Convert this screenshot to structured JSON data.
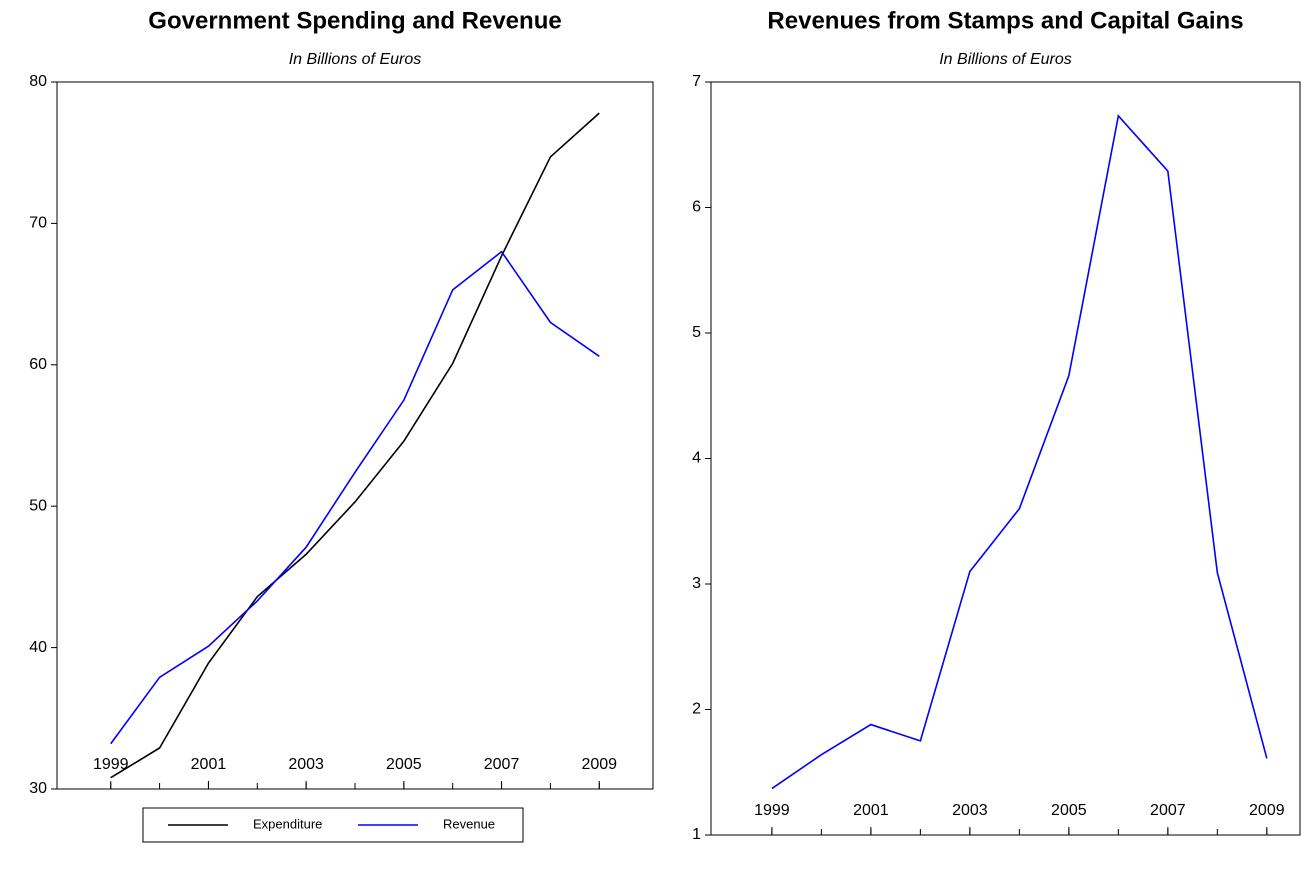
{
  "chart_data": [
    {
      "type": "line",
      "title": "Government Spending and Revenue",
      "subtitle": "In Billions of Euros",
      "x": [
        1999,
        2000,
        2001,
        2002,
        2003,
        2004,
        2005,
        2006,
        2007,
        2008,
        2009
      ],
      "series": [
        {
          "name": "Expenditure",
          "color": "#000000",
          "values": [
            30.8,
            32.9,
            38.9,
            43.6,
            46.6,
            50.3,
            54.6,
            60.1,
            67.7,
            74.7,
            77.8
          ]
        },
        {
          "name": "Revenue",
          "color": "#0000ff",
          "values": [
            33.2,
            37.9,
            40.1,
            43.3,
            47.1,
            52.4,
            57.5,
            65.3,
            68.0,
            63.0,
            60.6
          ]
        }
      ],
      "xlim": [
        1997.9,
        2010.1
      ],
      "xticks": [
        1999,
        2001,
        2003,
        2005,
        2007,
        2009
      ],
      "ylim": [
        30,
        80
      ],
      "yticks": [
        30,
        40,
        50,
        60,
        70,
        80
      ],
      "legend": "bottom"
    },
    {
      "type": "line",
      "title": "Revenues from Stamps and Capital Gains",
      "subtitle": "In Billions of Euros",
      "x": [
        1999,
        2000,
        2001,
        2002,
        2003,
        2004,
        2005,
        2006,
        2007,
        2008,
        2009
      ],
      "series": [
        {
          "name": null,
          "color": "#0000ff",
          "values": [
            1.37,
            1.64,
            1.88,
            1.75,
            3.1,
            3.6,
            4.66,
            6.73,
            6.29,
            3.09,
            1.61
          ]
        }
      ],
      "xlim": [
        1997.77,
        2009.67
      ],
      "xticks": [
        1999,
        2001,
        2003,
        2005,
        2007,
        2009
      ],
      "ylim": [
        1,
        7
      ],
      "yticks": [
        1,
        2,
        3,
        4,
        5,
        6,
        7
      ]
    }
  ]
}
